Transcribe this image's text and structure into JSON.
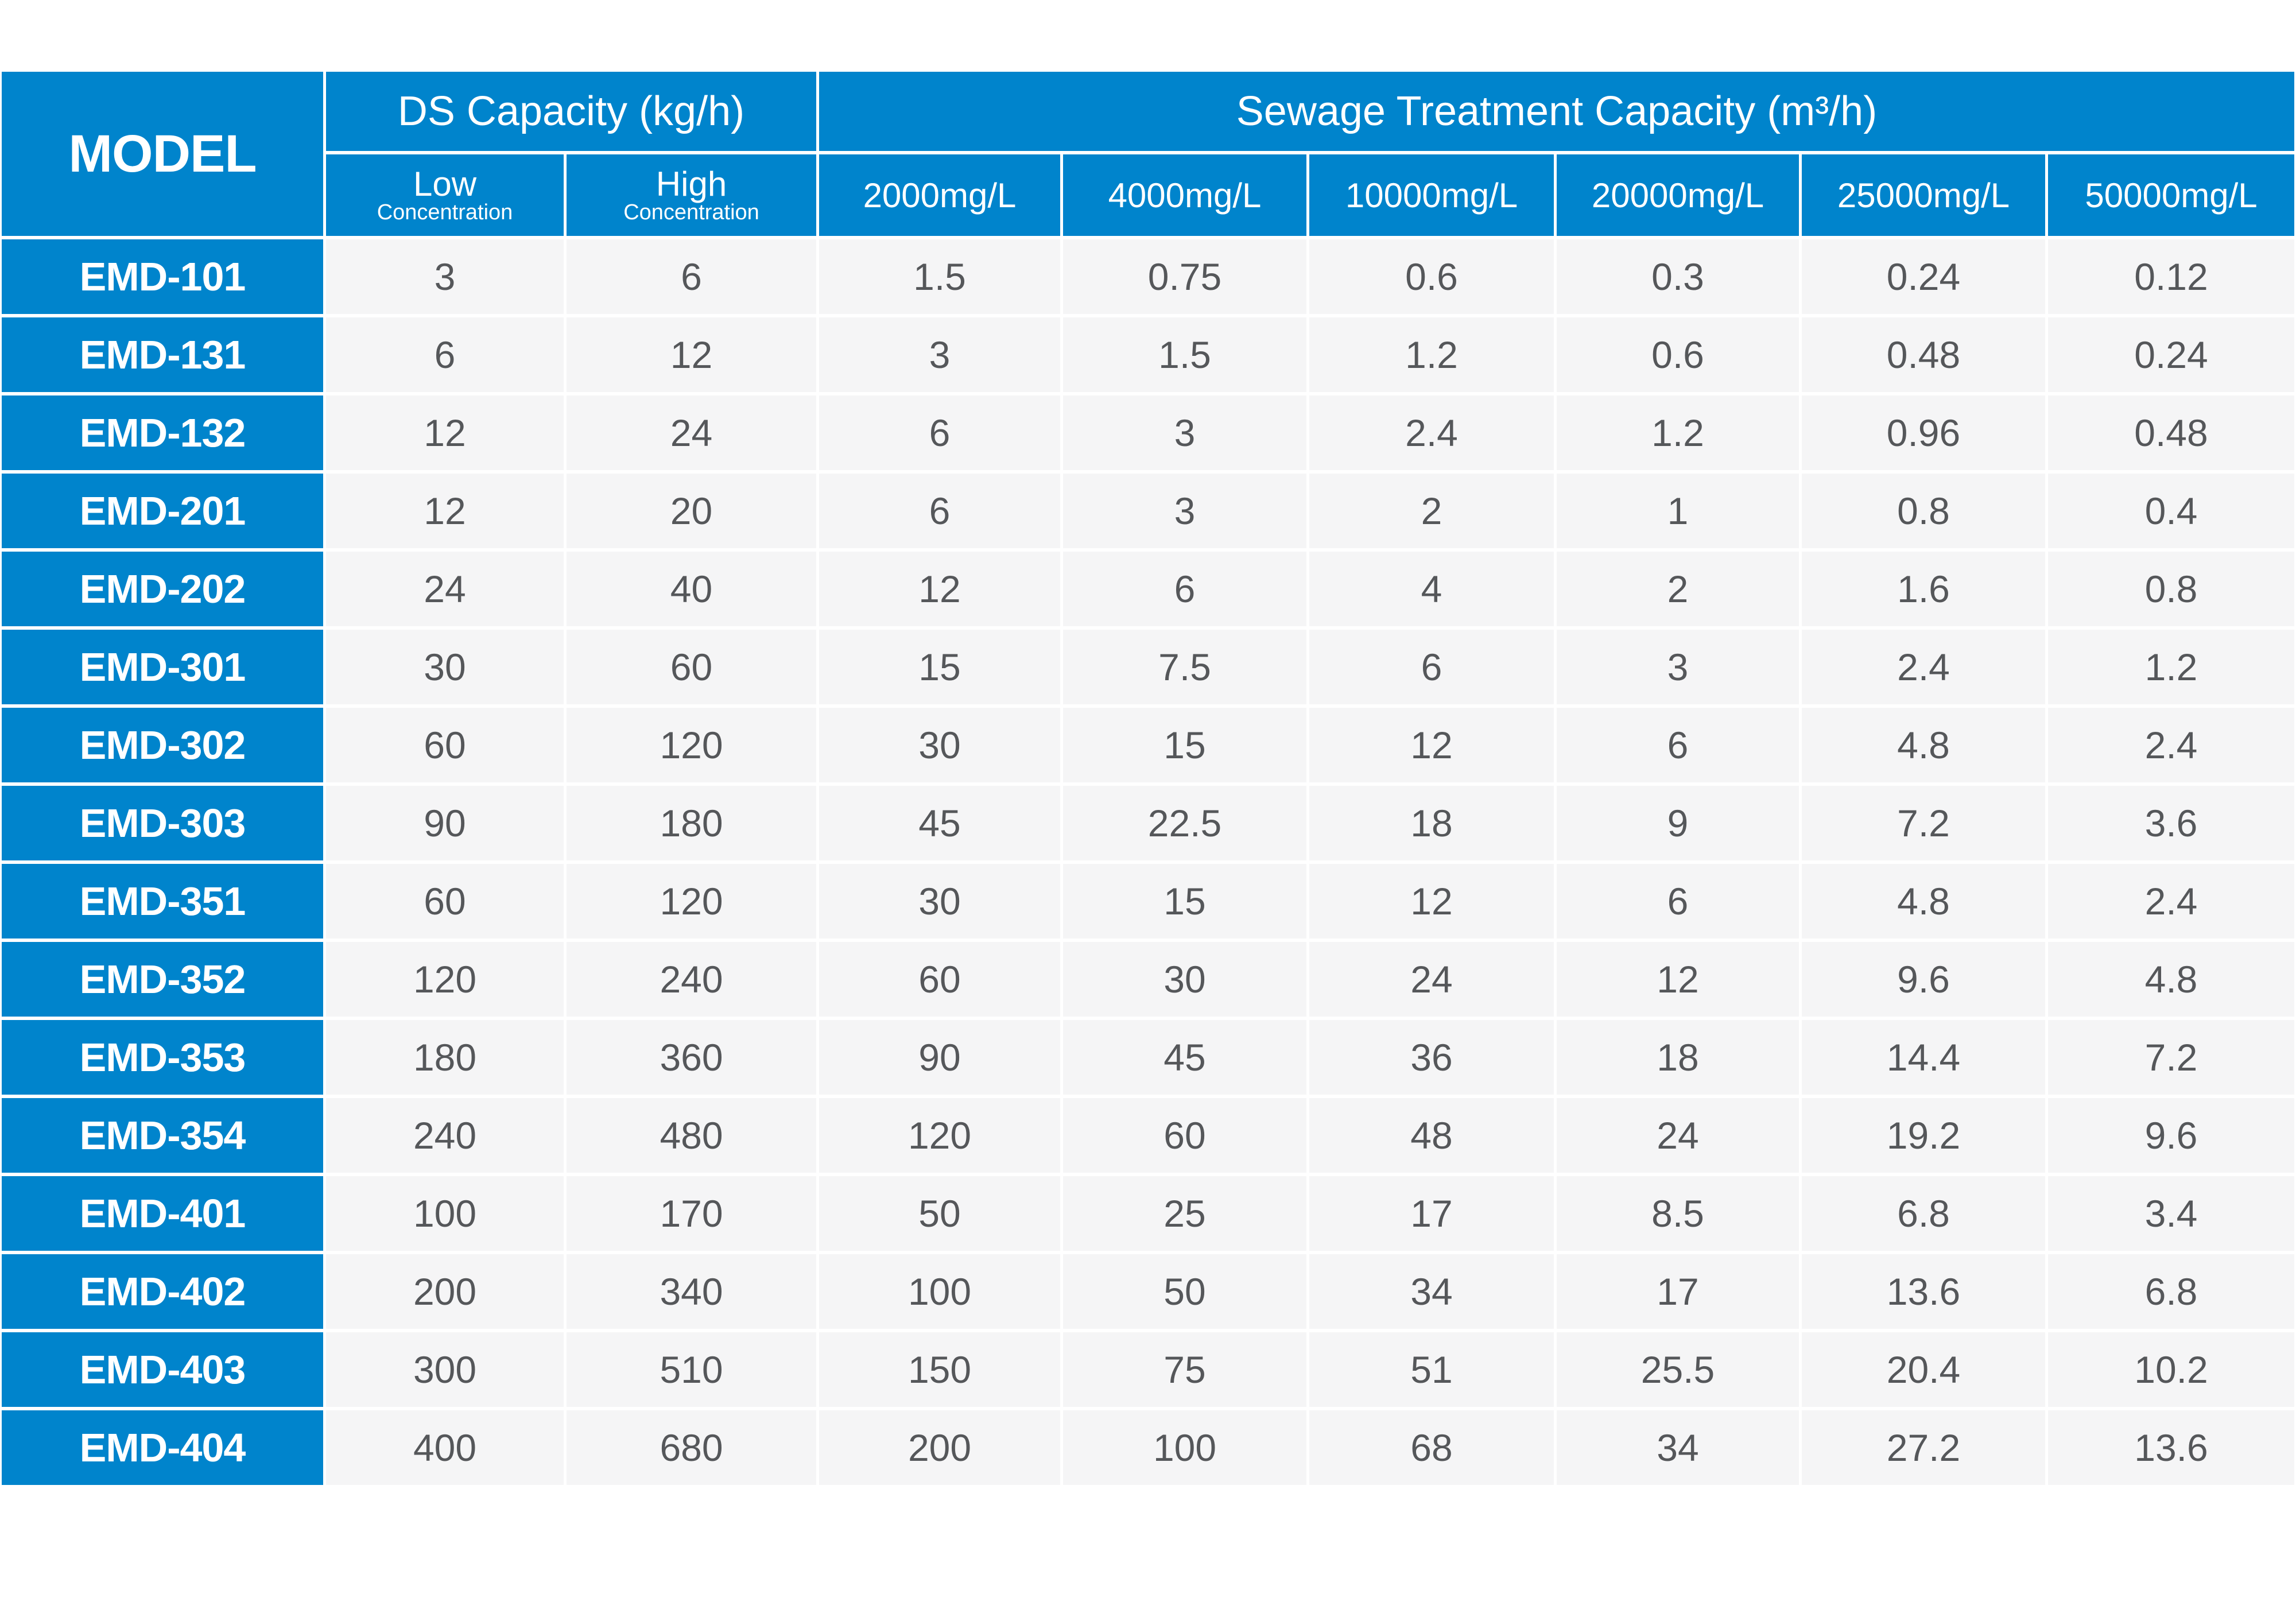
{
  "colors": {
    "header_blue": "#0084CC",
    "row_bg": "#F5F5F6",
    "value_text": "#55575A",
    "header_text": "#FFFFFF"
  },
  "table": {
    "header": {
      "model": "MODEL",
      "ds_capacity": "DS Capacity (kg/h)",
      "sewage": "Sewage Treatment Capacity (m³/h)",
      "low": "Low",
      "high": "High",
      "concentration": "Concentration",
      "mg_columns": [
        "2000mg/L",
        "4000mg/L",
        "10000mg/L",
        "20000mg/L",
        "25000mg/L",
        "50000mg/L"
      ]
    },
    "rows": [
      {
        "model": "EMD-101",
        "low": "3",
        "high": "6",
        "values": [
          "1.5",
          "0.75",
          "0.6",
          "0.3",
          "0.24",
          "0.12"
        ]
      },
      {
        "model": "EMD-131",
        "low": "6",
        "high": "12",
        "values": [
          "3",
          "1.5",
          "1.2",
          "0.6",
          "0.48",
          "0.24"
        ]
      },
      {
        "model": "EMD-132",
        "low": "12",
        "high": "24",
        "values": [
          "6",
          "3",
          "2.4",
          "1.2",
          "0.96",
          "0.48"
        ]
      },
      {
        "model": "EMD-201",
        "low": "12",
        "high": "20",
        "values": [
          "6",
          "3",
          "2",
          "1",
          "0.8",
          "0.4"
        ]
      },
      {
        "model": "EMD-202",
        "low": "24",
        "high": "40",
        "values": [
          "12",
          "6",
          "4",
          "2",
          "1.6",
          "0.8"
        ]
      },
      {
        "model": "EMD-301",
        "low": "30",
        "high": "60",
        "values": [
          "15",
          "7.5",
          "6",
          "3",
          "2.4",
          "1.2"
        ]
      },
      {
        "model": "EMD-302",
        "low": "60",
        "high": "120",
        "values": [
          "30",
          "15",
          "12",
          "6",
          "4.8",
          "2.4"
        ]
      },
      {
        "model": "EMD-303",
        "low": "90",
        "high": "180",
        "values": [
          "45",
          "22.5",
          "18",
          "9",
          "7.2",
          "3.6"
        ]
      },
      {
        "model": "EMD-351",
        "low": "60",
        "high": "120",
        "values": [
          "30",
          "15",
          "12",
          "6",
          "4.8",
          "2.4"
        ]
      },
      {
        "model": "EMD-352",
        "low": "120",
        "high": "240",
        "values": [
          "60",
          "30",
          "24",
          "12",
          "9.6",
          "4.8"
        ]
      },
      {
        "model": "EMD-353",
        "low": "180",
        "high": "360",
        "values": [
          "90",
          "45",
          "36",
          "18",
          "14.4",
          "7.2"
        ]
      },
      {
        "model": "EMD-354",
        "low": "240",
        "high": "480",
        "values": [
          "120",
          "60",
          "48",
          "24",
          "19.2",
          "9.6"
        ]
      },
      {
        "model": "EMD-401",
        "low": "100",
        "high": "170",
        "values": [
          "50",
          "25",
          "17",
          "8.5",
          "6.8",
          "3.4"
        ]
      },
      {
        "model": "EMD-402",
        "low": "200",
        "high": "340",
        "values": [
          "100",
          "50",
          "34",
          "17",
          "13.6",
          "6.8"
        ]
      },
      {
        "model": "EMD-403",
        "low": "300",
        "high": "510",
        "values": [
          "150",
          "75",
          "51",
          "25.5",
          "20.4",
          "10.2"
        ]
      },
      {
        "model": "EMD-404",
        "low": "400",
        "high": "680",
        "values": [
          "200",
          "100",
          "68",
          "34",
          "27.2",
          "13.6"
        ]
      }
    ]
  }
}
